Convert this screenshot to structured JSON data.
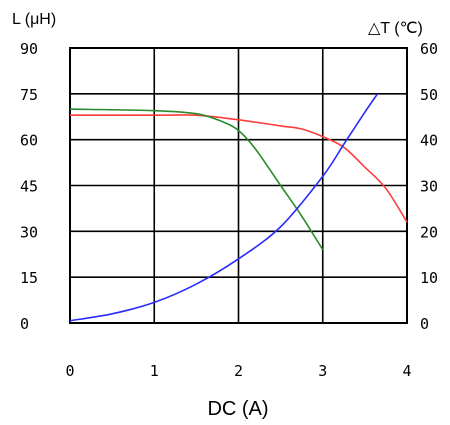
{
  "chart_data": {
    "type": "line",
    "ylabel_left": "L (μH)",
    "ylabel_right": "△T (℃)",
    "xlabel": "DC (A)",
    "xlim": [
      0,
      4
    ],
    "ylim_left": [
      0,
      90
    ],
    "ylim_right": [
      0,
      60
    ],
    "grid": true,
    "x_ticks": [
      "0",
      "1",
      "2",
      "3",
      "4"
    ],
    "y_left_ticks": [
      "0",
      "15",
      "30",
      "45",
      "60",
      "75",
      "90"
    ],
    "y_right_ticks": [
      "0",
      "10",
      "20",
      "30",
      "40",
      "50",
      "60"
    ],
    "series": [
      {
        "axis": "left",
        "color": "#ff3b3b",
        "points": [
          [
            0,
            68
          ],
          [
            1,
            68
          ],
          [
            1.5,
            68
          ],
          [
            2,
            66.5
          ],
          [
            2.5,
            64.5
          ],
          [
            2.75,
            63.5
          ],
          [
            3,
            61
          ],
          [
            3.25,
            57.5
          ],
          [
            3.5,
            51
          ],
          [
            3.75,
            44
          ],
          [
            4,
            33
          ]
        ]
      },
      {
        "axis": "left",
        "color": "#2a8a2a",
        "points": [
          [
            0,
            70
          ],
          [
            1,
            69.5
          ],
          [
            1.5,
            68.5
          ],
          [
            1.8,
            66
          ],
          [
            2,
            63
          ],
          [
            2.2,
            57
          ],
          [
            2.5,
            45
          ],
          [
            2.75,
            35
          ],
          [
            3,
            24
          ]
        ]
      },
      {
        "axis": "right",
        "color": "#2b2bff",
        "points": [
          [
            0,
            0.5
          ],
          [
            0.5,
            2
          ],
          [
            1,
            4.5
          ],
          [
            1.5,
            8.5
          ],
          [
            2,
            14
          ],
          [
            2.5,
            21
          ],
          [
            3,
            32
          ],
          [
            3.25,
            39
          ],
          [
            3.5,
            46
          ],
          [
            3.65,
            50
          ]
        ]
      }
    ]
  }
}
